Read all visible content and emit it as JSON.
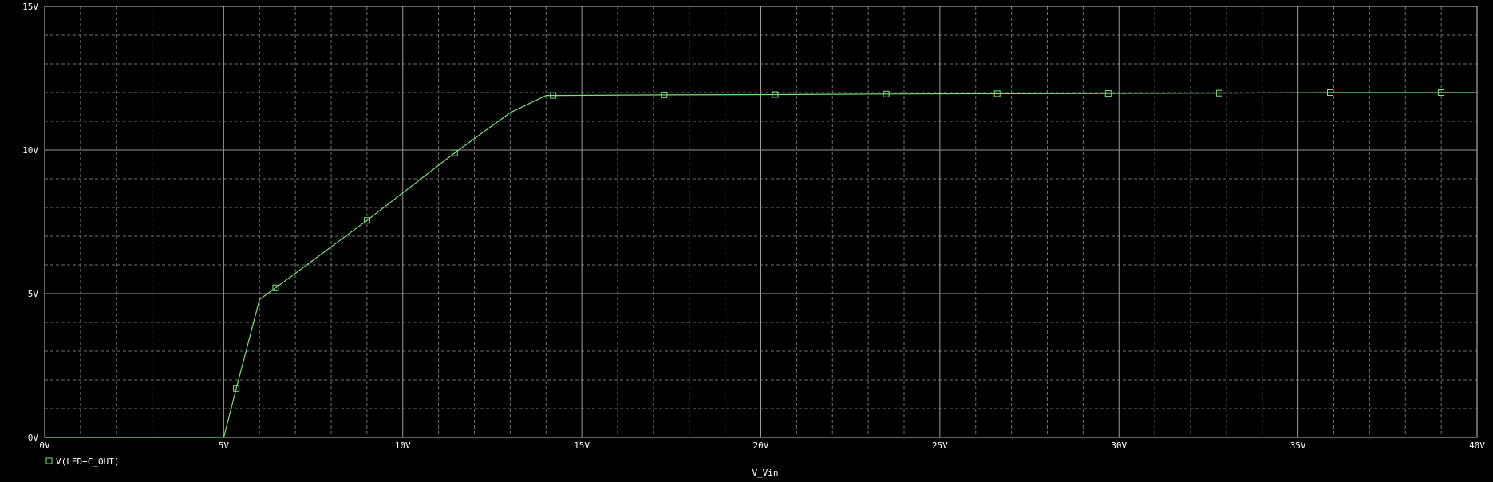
{
  "colors": {
    "background": "#000000",
    "grid_major": "#9a9a9a",
    "grid_minor": "#707070",
    "frame": "#c8c8c8",
    "text": "#ffffff",
    "trace": "#7ce07c"
  },
  "chart_data": {
    "type": "line",
    "xlabel": "V_Vin",
    "ylabel": "",
    "xlim": [
      0,
      40
    ],
    "ylim": [
      0,
      15
    ],
    "x_ticks": [
      0,
      5,
      10,
      15,
      20,
      25,
      30,
      35,
      40
    ],
    "x_tick_labels": [
      "0V",
      "5V",
      "10V",
      "15V",
      "20V",
      "25V",
      "30V",
      "35V",
      "40V"
    ],
    "y_ticks": [
      0,
      5,
      10,
      15
    ],
    "y_tick_labels": [
      "0V",
      "5V",
      "10V",
      "15V"
    ],
    "grid": true,
    "legend_position": "bottom-left",
    "series": [
      {
        "name": "V(LED+C_OUT)",
        "color": "#7ce07c",
        "marker": "hollow-square",
        "x": [
          0,
          5.0,
          5.35,
          6.0,
          6.45,
          9.0,
          11.45,
          13.0,
          14.0,
          14.2,
          17.3,
          20.4,
          23.5,
          26.6,
          29.7,
          32.8,
          35.9,
          39.0,
          40.0
        ],
        "y": [
          0,
          0,
          1.7,
          4.8,
          5.2,
          7.55,
          9.9,
          11.3,
          11.9,
          11.9,
          11.92,
          11.93,
          11.95,
          11.96,
          11.97,
          11.98,
          12.0,
          12.0,
          12.0
        ],
        "marker_x": [
          5.35,
          6.45,
          9.0,
          11.45,
          14.2,
          17.3,
          20.4,
          23.5,
          26.6,
          29.7,
          32.8,
          35.9,
          39.0
        ],
        "marker_y": [
          1.7,
          5.2,
          7.55,
          9.9,
          11.9,
          11.92,
          11.93,
          11.95,
          11.96,
          11.97,
          11.98,
          12.0,
          12.0
        ]
      }
    ]
  }
}
